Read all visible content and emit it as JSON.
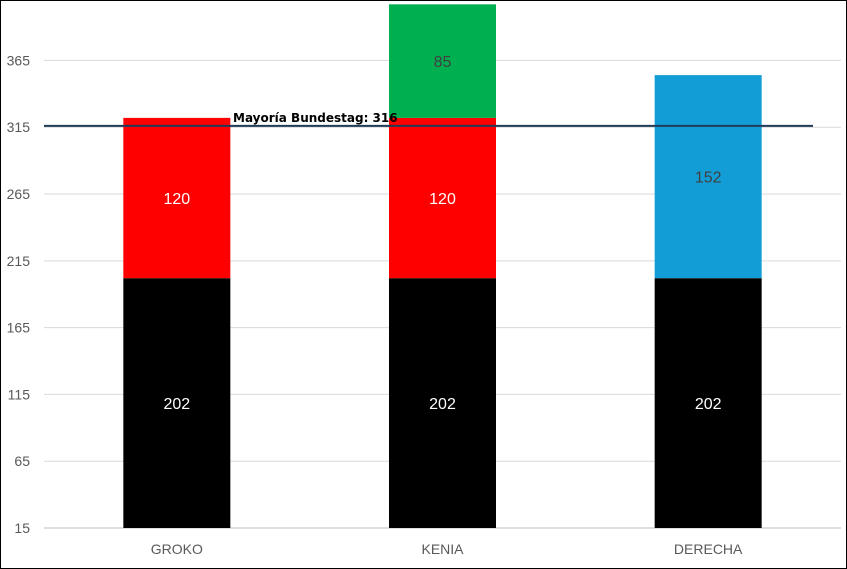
{
  "chart_data": {
    "type": "bar",
    "stacked": true,
    "categories": [
      "GROKO",
      "KENIA",
      "DERECHA"
    ],
    "series": [
      {
        "color": "#000000",
        "label_color": "#ffffff",
        "values": [
          202,
          202,
          202
        ]
      },
      {
        "color": "#ff0000",
        "label_color": "#ffffff",
        "values": [
          120,
          120,
          null
        ]
      },
      {
        "color": "#00b050",
        "label_color": "#404040",
        "values": [
          null,
          85,
          null
        ]
      },
      {
        "color": "#129dd6",
        "label_color": "#404040",
        "values": [
          null,
          null,
          152
        ]
      }
    ],
    "data_labels": [
      [
        "202",
        "202",
        "202"
      ],
      [
        "120",
        "120",
        ""
      ],
      [
        "",
        "85",
        ""
      ],
      [
        "",
        "",
        "152"
      ]
    ],
    "y_ticks": [
      "15",
      "65",
      "115",
      "165",
      "215",
      "265",
      "315",
      "365"
    ],
    "ylim": [
      15,
      405
    ],
    "grid": true,
    "reference_line": {
      "value": 316,
      "label": "Mayoría Bundestag: 316",
      "color": "#1f3b57"
    }
  }
}
